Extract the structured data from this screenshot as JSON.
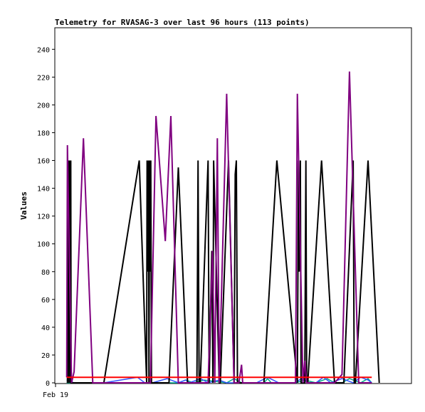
{
  "chart_data": {
    "type": "line",
    "title": "Telemetry for RVASAG-3 over last 96 hours (113 points)",
    "ylabel": "Values",
    "xlabel": "",
    "ylim": [
      0,
      255
    ],
    "xlim": [
      0,
      96
    ],
    "yticks": [
      0,
      20,
      40,
      60,
      80,
      100,
      120,
      140,
      160,
      180,
      200,
      220,
      240
    ],
    "xticks": [
      {
        "x": 0,
        "label": "Feb 19"
      }
    ],
    "grid": false,
    "series": [
      {
        "color": "#000000",
        "width": 2,
        "x": [
          3.2,
          3.3,
          3.4,
          3.5,
          3.6,
          3.7,
          3.8,
          3.9,
          4.0,
          4.1,
          4.2,
          13.0,
          22.5,
          24.5,
          24.6,
          24.8,
          25.0,
          25.1,
          25.3,
          25.4,
          25.6,
          25.8,
          25.9,
          30.5,
          33.0,
          35.5,
          38.0,
          38.3,
          38.6,
          38.9,
          41.0,
          41.3,
          42.0,
          42.3,
          42.5,
          44.0,
          44.3,
          46.5,
          48.0,
          48.3,
          48.6,
          48.9,
          49.2,
          56.0,
          59.5,
          65.0,
          65.3,
          65.5,
          65.8,
          66.0,
          67.0,
          67.3,
          67.5,
          67.8,
          71.5,
          75.0,
          77.5,
          80.0,
          80.3,
          80.6,
          84.0,
          87.0
        ],
        "y": [
          0,
          160,
          80,
          160,
          0,
          160,
          80,
          160,
          0,
          160,
          0,
          0,
          160,
          0,
          160,
          80,
          160,
          0,
          160,
          80,
          160,
          0,
          0,
          0,
          155,
          0,
          0,
          160,
          0,
          0,
          160,
          0,
          95,
          0,
          160,
          0,
          0,
          160,
          0,
          150,
          160,
          0,
          0,
          0,
          160,
          0,
          160,
          80,
          160,
          0,
          0,
          160,
          0,
          0,
          160,
          0,
          0,
          160,
          0,
          0,
          160,
          0
        ]
      },
      {
        "color": "#800080",
        "width": 2,
        "x": [
          3.0,
          3.2,
          4.3,
          5.0,
          7.5,
          10.0,
          10.5,
          22.0,
          25.5,
          27.0,
          29.5,
          31.0,
          33.0,
          35.0,
          36.0,
          41.0,
          42.2,
          42.8,
          43.5,
          44.0,
          46.0,
          48.0,
          49.3,
          50.0,
          50.3,
          51.0,
          64.5,
          65.0,
          66.5,
          67.0,
          67.5,
          75.0,
          77.0,
          79.0,
          81.5,
          84.5,
          85.0
        ],
        "y": [
          4,
          171,
          0,
          8,
          176,
          0,
          0,
          0,
          0,
          192,
          102,
          192,
          0,
          0,
          0,
          0,
          95,
          0,
          176,
          0,
          208,
          0,
          0,
          13,
          0,
          0,
          0,
          208,
          0,
          16,
          0,
          0,
          6,
          224,
          0,
          0,
          0
        ]
      },
      {
        "color": "#ff0000",
        "width": 2,
        "x": [
          3.0,
          85.0
        ],
        "y": [
          4,
          4
        ]
      },
      {
        "color": "#00aa88",
        "width": 1.5,
        "x": [
          3.0,
          33.0,
          35.0,
          37.0,
          40.0,
          46.0,
          48.0,
          50.0,
          56.0,
          57.0,
          58.0,
          64.5,
          67.0,
          70.0,
          73.0,
          75.0,
          77.0,
          79.0,
          82.0,
          84.0,
          85.0
        ],
        "y": [
          0,
          0,
          2,
          0,
          2,
          0,
          3,
          0,
          0,
          3,
          0,
          0,
          2,
          0,
          3,
          0,
          0,
          3,
          0,
          3,
          0
        ]
      },
      {
        "color": "#3355ff",
        "width": 1.5,
        "x": [
          3.0,
          5.0,
          10.0,
          13.0,
          22.0,
          24.0,
          26.0,
          30.0,
          33.0,
          35.0,
          36.0,
          39.0,
          41.0,
          44.0,
          46.0,
          50.0,
          54.0,
          57.0,
          60.0,
          64.5,
          66.0,
          68.0,
          70.0,
          72.0,
          74.0,
          77.0,
          80.0,
          82.0,
          84.0,
          85.0
        ],
        "y": [
          2,
          0,
          0,
          0,
          4,
          0,
          0,
          3,
          0,
          2,
          0,
          3,
          0,
          2,
          0,
          0,
          0,
          4,
          0,
          0,
          3,
          0,
          0,
          4,
          0,
          3,
          0,
          4,
          2,
          0
        ]
      }
    ]
  }
}
